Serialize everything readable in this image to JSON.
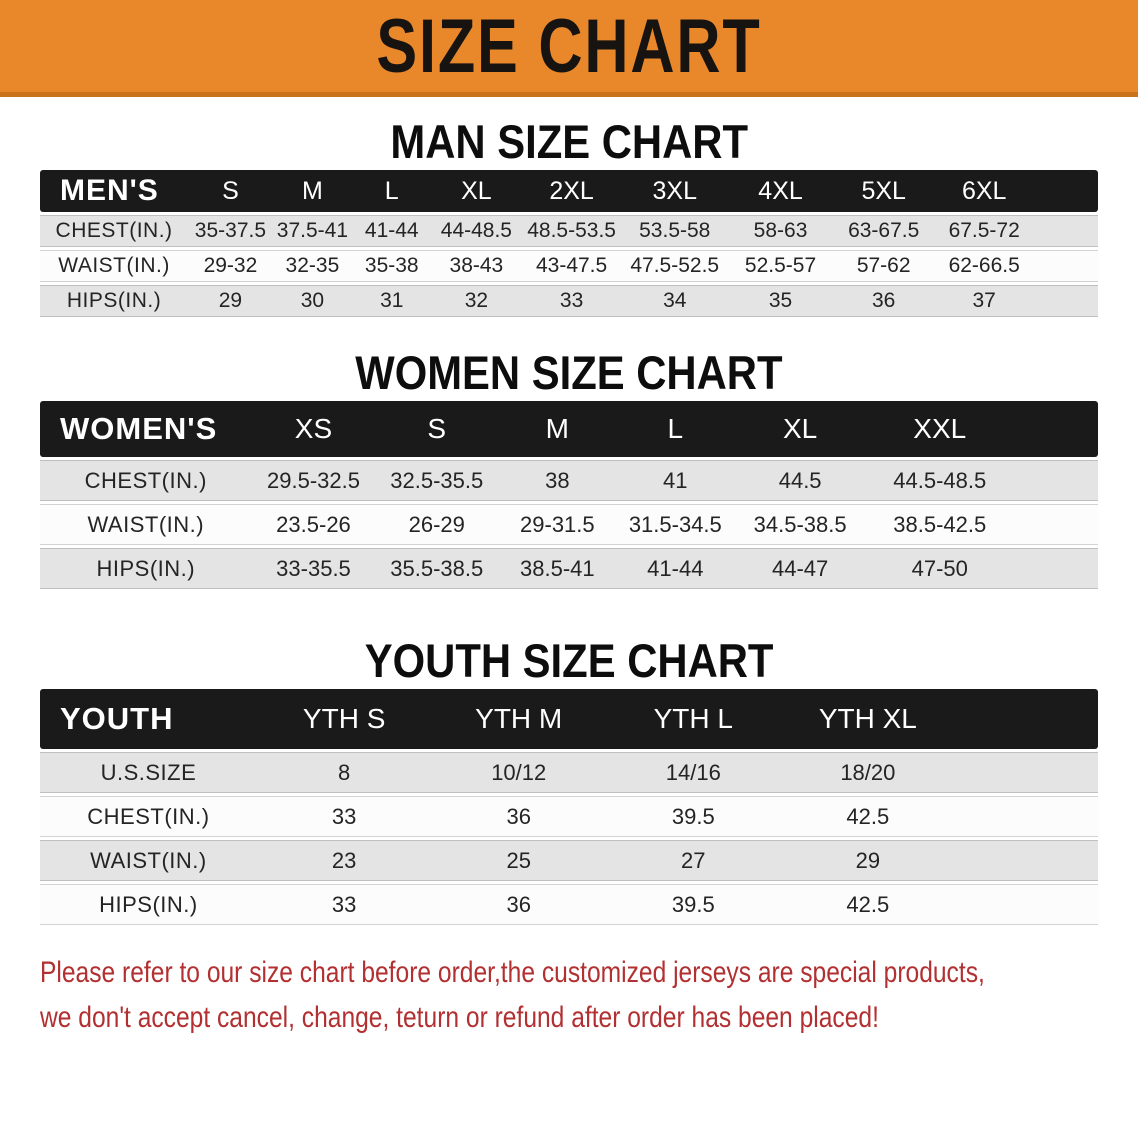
{
  "banner": {
    "title": "SIZE CHART"
  },
  "colors": {
    "banner_bg": "#E9882B",
    "banner_edge": "#C9721C",
    "banner_text": "#161310",
    "header_bg": "#1A1A1A",
    "header_text": "#FFFFFF",
    "row_gray": "#E4E4E4",
    "row_white": "#FCFCFC",
    "text_dark": "#242424",
    "note_red": "#B23031"
  },
  "sections": [
    {
      "heading": "MAN SIZE CHART",
      "table": {
        "label": "MEN'S",
        "sizes": [
          "S",
          "M",
          "L",
          "XL",
          "2XL",
          "3XL",
          "4XL",
          "5XL",
          "6XL"
        ],
        "rows": [
          {
            "label": "CHEST(IN.)",
            "values": [
              "35-37.5",
              "37.5-41",
              "41-44",
              "44-48.5",
              "48.5-53.5",
              "53.5-58",
              "58-63",
              "63-67.5",
              "67.5-72"
            ]
          },
          {
            "label": "WAIST(IN.)",
            "values": [
              "29-32",
              "32-35",
              "35-38",
              "38-43",
              "43-47.5",
              "47.5-52.5",
              "52.5-57",
              "57-62",
              "62-66.5"
            ]
          },
          {
            "label": "HIPS(IN.)",
            "values": [
              "29",
              "30",
              "31",
              "32",
              "33",
              "34",
              "35",
              "36",
              "37"
            ]
          }
        ]
      }
    },
    {
      "heading": "WOMEN SIZE CHART",
      "table": {
        "label": "WOMEN'S",
        "sizes": [
          "XS",
          "S",
          "M",
          "L",
          "XL",
          "XXL"
        ],
        "rows": [
          {
            "label": "CHEST(IN.)",
            "values": [
              "29.5-32.5",
              "32.5-35.5",
              "38",
              "41",
              "44.5",
              "44.5-48.5"
            ]
          },
          {
            "label": "WAIST(IN.)",
            "values": [
              "23.5-26",
              "26-29",
              "29-31.5",
              "31.5-34.5",
              "34.5-38.5",
              "38.5-42.5"
            ]
          },
          {
            "label": "HIPS(IN.)",
            "values": [
              "33-35.5",
              "35.5-38.5",
              "38.5-41",
              "41-44",
              "44-47",
              "47-50"
            ]
          }
        ]
      }
    },
    {
      "heading": "YOUTH SIZE CHART",
      "table": {
        "label": "YOUTH",
        "sizes": [
          "YTH S",
          "YTH M",
          "YTH L",
          "YTH XL"
        ],
        "rows": [
          {
            "label": "U.S.SIZE",
            "values": [
              "8",
              "10/12",
              "14/16",
              "18/20"
            ]
          },
          {
            "label": "CHEST(IN.)",
            "values": [
              "33",
              "36",
              "39.5",
              "42.5"
            ]
          },
          {
            "label": "WAIST(IN.)",
            "values": [
              "23",
              "25",
              "27",
              "29"
            ]
          },
          {
            "label": "HIPS(IN.)",
            "values": [
              "33",
              "36",
              "39.5",
              "42.5"
            ]
          }
        ]
      }
    }
  ],
  "note": {
    "line1": "Please refer to our size chart before order,the customized jerseys are special products,",
    "line2": "we don't accept cancel, change, teturn or refund after order has been placed!"
  }
}
